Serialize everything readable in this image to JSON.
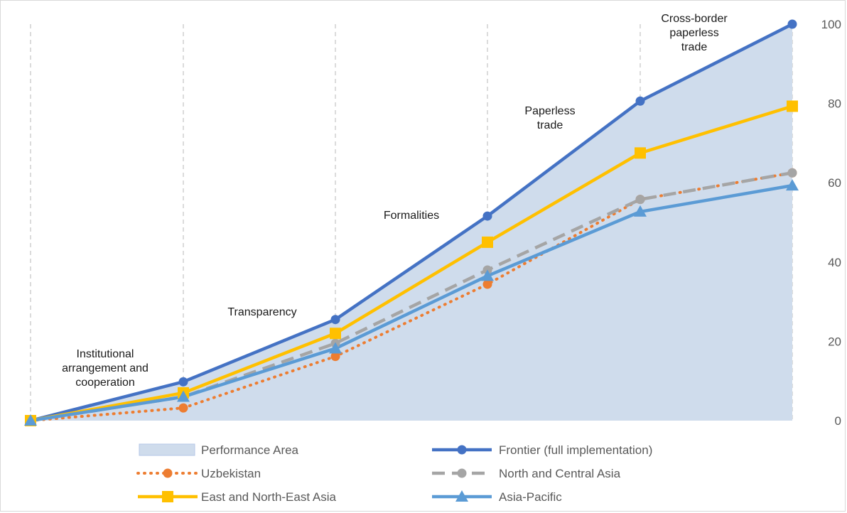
{
  "chart_data": {
    "type": "line",
    "categories": [
      "",
      "Institutional arrangement and cooperation",
      "Transparency",
      "Formalities",
      "Paperless trade",
      "Cross-border paperless trade"
    ],
    "category_labels": [
      [
        "Institutional",
        "arrangement and",
        "cooperation"
      ],
      [
        "Transparency"
      ],
      [
        "Formalities"
      ],
      [
        "Paperless",
        "trade"
      ],
      [
        "Cross-border",
        "paperless",
        "trade"
      ]
    ],
    "yaxis": {
      "position": "right",
      "ylim": [
        0,
        100
      ],
      "ticks": [
        "0",
        "20",
        "40",
        "60",
        "80",
        "100"
      ]
    },
    "grid": {
      "vertical": "dashed",
      "horizontal": false
    },
    "legend_position": "bottom",
    "series": [
      {
        "name": "Performance Area",
        "kind": "area",
        "values": [
          0,
          9.8,
          25.5,
          51.6,
          80.6,
          100
        ],
        "color": "#cfdcec"
      },
      {
        "name": "Frontier (full implementation)",
        "kind": "line",
        "marker": "circle",
        "dash": "solid",
        "values": [
          0,
          9.8,
          25.5,
          51.6,
          80.6,
          100
        ],
        "color": "#4472c4"
      },
      {
        "name": "Uzbekistan",
        "kind": "line",
        "marker": "circle",
        "dash": "dotted",
        "values": [
          0,
          3.2,
          16.2,
          34.4,
          55.8,
          62.5
        ],
        "color": "#ed7d31"
      },
      {
        "name": "North and Central Asia",
        "kind": "line",
        "marker": "circle",
        "dash": "dashed",
        "values": [
          0,
          6.0,
          19.5,
          38.0,
          55.8,
          62.5
        ],
        "color": "#a5a5a5"
      },
      {
        "name": "East and North-East Asia",
        "kind": "line",
        "marker": "square",
        "dash": "solid",
        "values": [
          0,
          7.0,
          22.0,
          45.0,
          67.5,
          79.3
        ],
        "color": "#ffc000"
      },
      {
        "name": "Asia-Pacific",
        "kind": "line",
        "marker": "triangle",
        "dash": "solid",
        "values": [
          0,
          6.0,
          18.2,
          36.5,
          52.7,
          59.3
        ],
        "color": "#5b9bd5"
      }
    ]
  }
}
